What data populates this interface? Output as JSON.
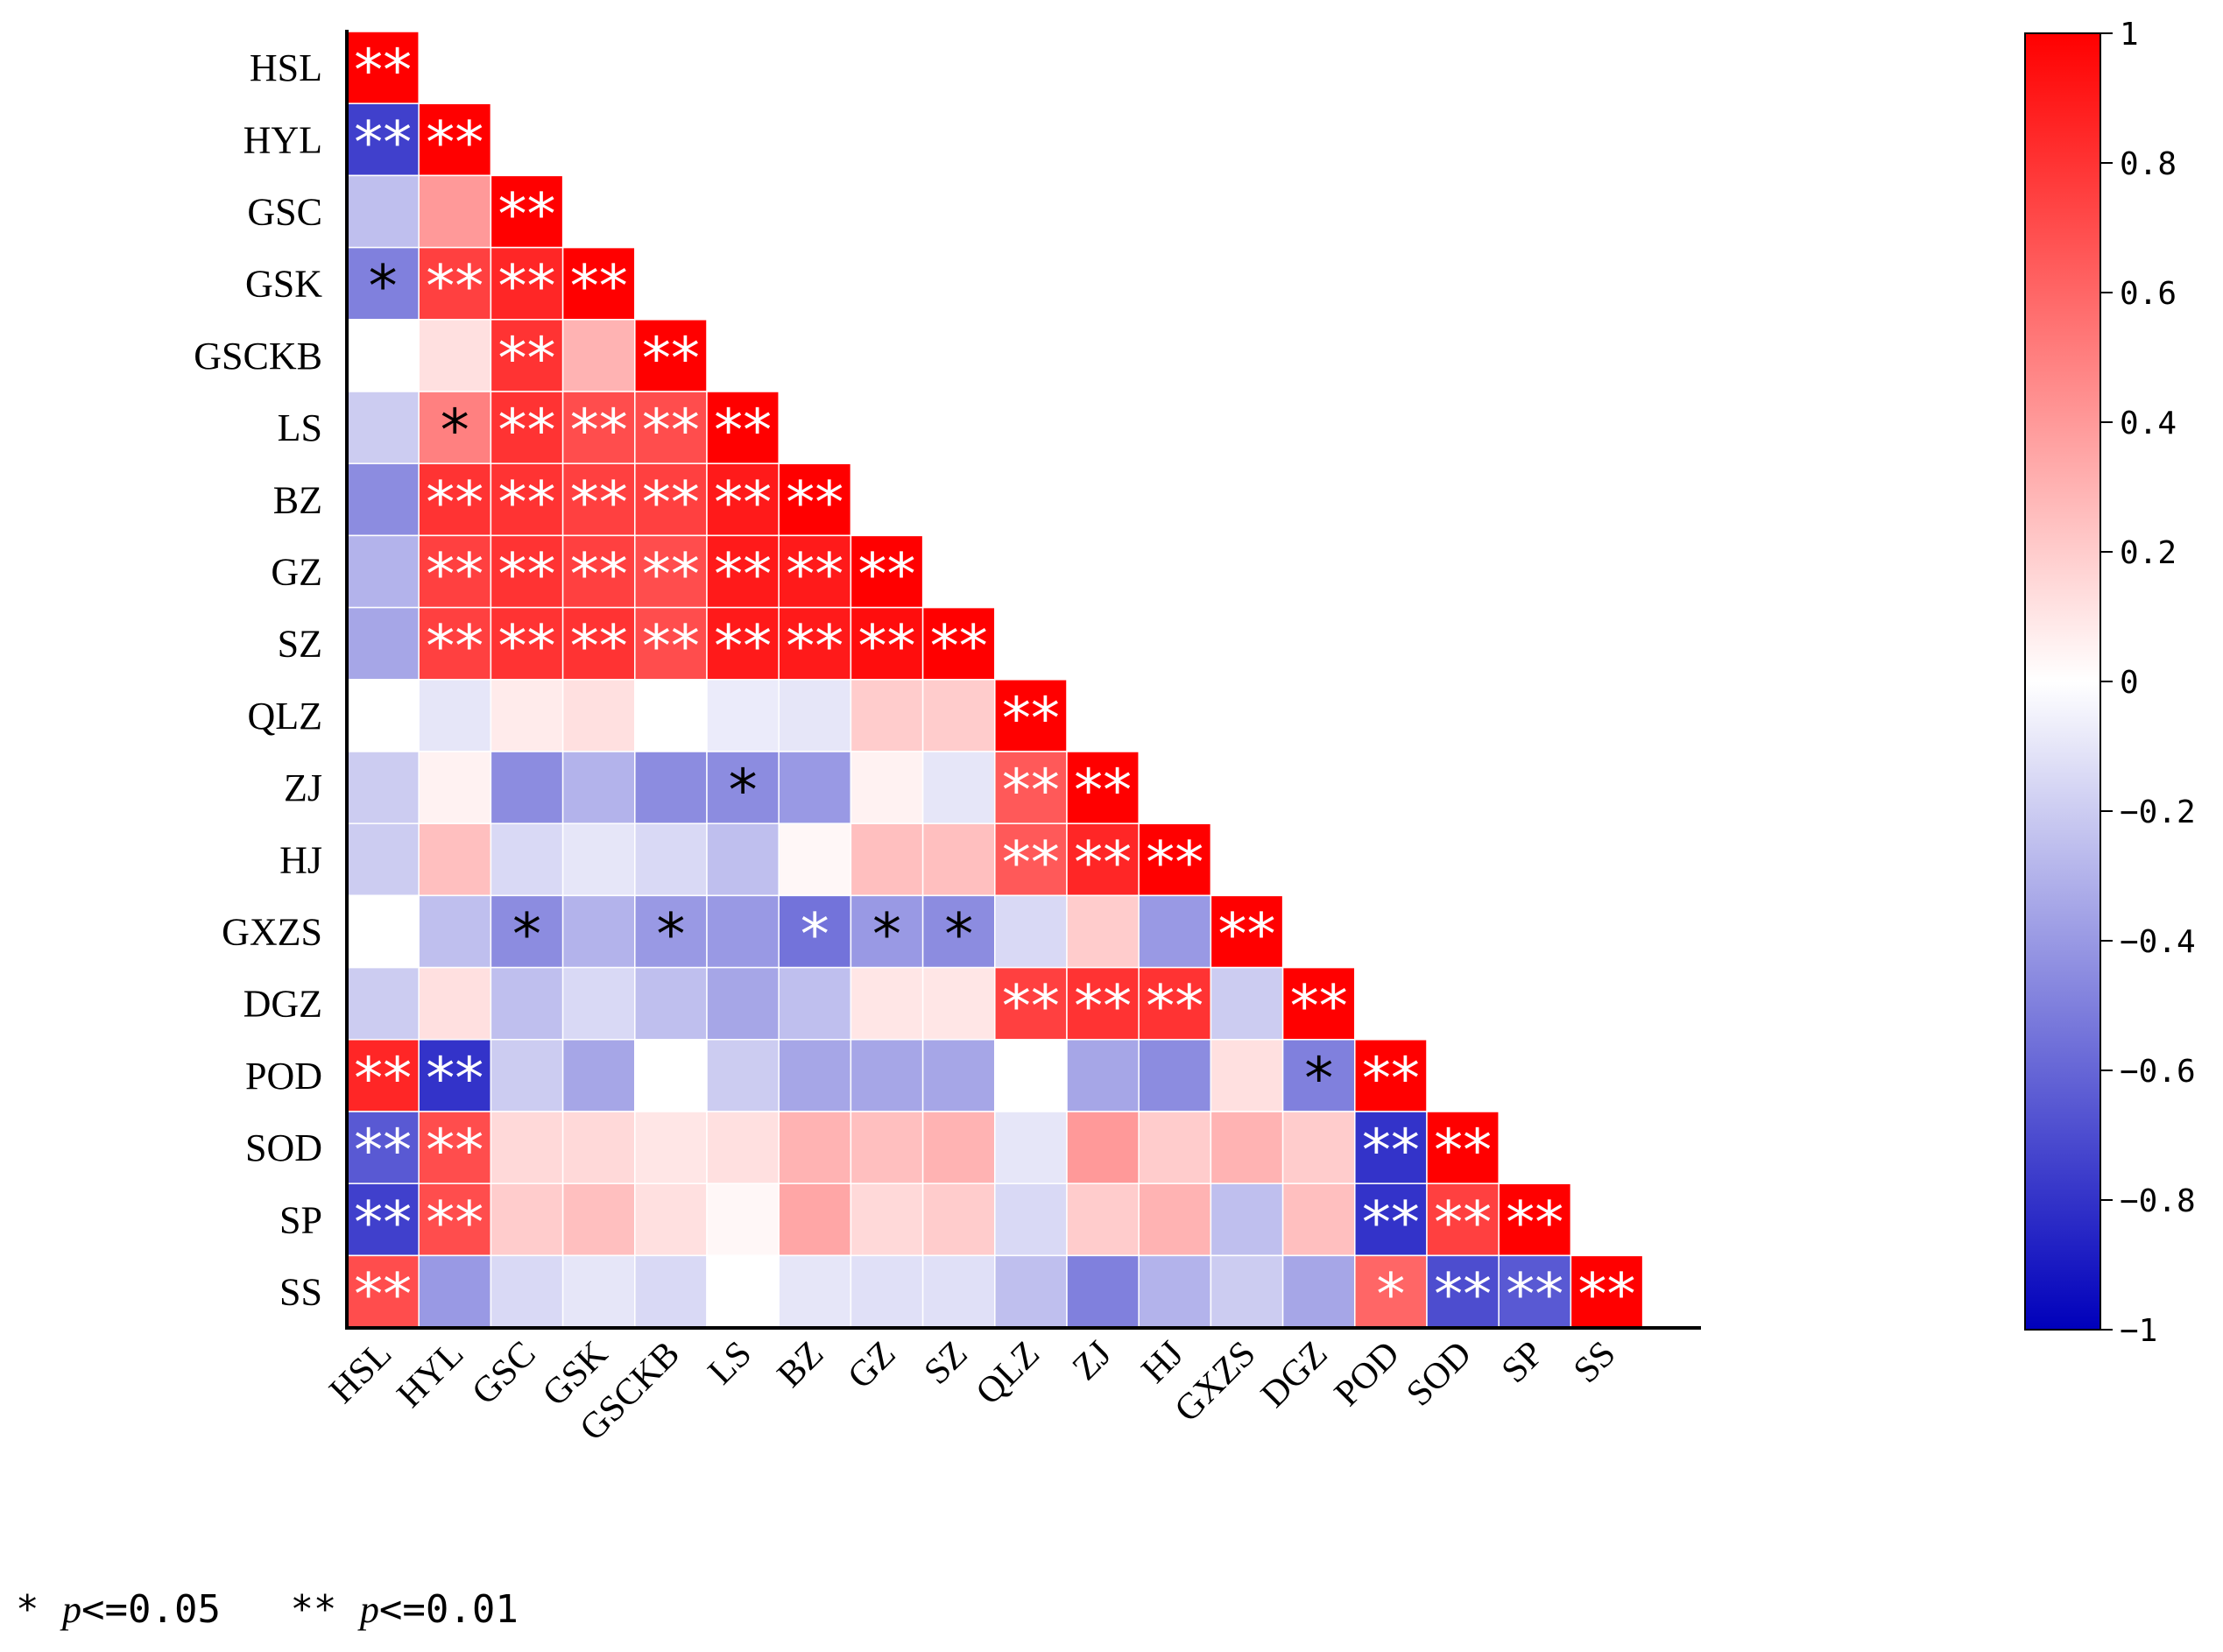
{
  "chart_data": {
    "type": "heatmap",
    "title": "",
    "variables": [
      "HSL",
      "HYL",
      "GSC",
      "GSK",
      "GSCKB",
      "LS",
      "BZ",
      "GZ",
      "SZ",
      "QLZ",
      "ZJ",
      "HJ",
      "GXZS",
      "DGZ",
      "POD",
      "SOD",
      "SP",
      "SS"
    ],
    "matrix": [
      [
        1.0
      ],
      [
        -0.75,
        1.0
      ],
      [
        -0.25,
        0.4,
        1.0
      ],
      [
        -0.5,
        0.75,
        0.85,
        1.0
      ],
      [
        0.0,
        0.12,
        0.8,
        0.3,
        1.0
      ],
      [
        -0.2,
        0.5,
        0.8,
        0.7,
        0.7,
        1.0
      ],
      [
        -0.45,
        0.8,
        0.8,
        0.75,
        0.75,
        0.9,
        1.0
      ],
      [
        -0.3,
        0.75,
        0.8,
        0.75,
        0.7,
        0.9,
        0.9,
        1.0
      ],
      [
        -0.35,
        0.75,
        0.8,
        0.8,
        0.7,
        0.9,
        0.9,
        0.95,
        1.0
      ],
      [
        0.0,
        -0.1,
        0.08,
        0.12,
        0.0,
        -0.08,
        -0.1,
        0.2,
        0.2,
        1.0
      ],
      [
        -0.2,
        0.05,
        -0.45,
        -0.3,
        -0.45,
        -0.45,
        -0.4,
        0.05,
        -0.1,
        0.65,
        1.0
      ],
      [
        -0.2,
        0.25,
        -0.15,
        -0.1,
        -0.15,
        -0.25,
        0.03,
        0.25,
        0.25,
        0.65,
        0.85,
        1.0
      ],
      [
        0.0,
        -0.25,
        -0.45,
        -0.3,
        -0.4,
        -0.4,
        -0.55,
        -0.4,
        -0.45,
        -0.15,
        0.2,
        -0.4,
        1.0
      ],
      [
        -0.2,
        0.12,
        -0.25,
        -0.15,
        -0.25,
        -0.35,
        -0.25,
        0.1,
        0.1,
        0.75,
        0.8,
        0.8,
        -0.2,
        1.0
      ],
      [
        0.85,
        -0.8,
        -0.2,
        -0.35,
        0.0,
        -0.2,
        -0.35,
        -0.35,
        -0.35,
        0.0,
        -0.35,
        -0.45,
        0.12,
        -0.5,
        1.0
      ],
      [
        -0.65,
        0.7,
        0.15,
        0.15,
        0.1,
        0.12,
        0.3,
        0.25,
        0.3,
        -0.1,
        0.4,
        0.2,
        0.3,
        0.2,
        -0.8,
        1.0
      ],
      [
        -0.75,
        0.7,
        0.2,
        0.25,
        0.12,
        0.03,
        0.35,
        0.15,
        0.2,
        -0.15,
        0.2,
        0.3,
        -0.25,
        0.25,
        -0.8,
        0.75,
        1.0
      ],
      [
        0.7,
        -0.4,
        -0.15,
        -0.1,
        -0.15,
        0.0,
        -0.1,
        -0.12,
        -0.12,
        -0.25,
        -0.5,
        -0.3,
        -0.2,
        -0.35,
        0.6,
        -0.7,
        -0.65,
        1.0
      ]
    ],
    "significance": [
      [
        "**"
      ],
      [
        "**",
        "**"
      ],
      [
        "",
        "",
        "**"
      ],
      [
        "*",
        "**",
        "**",
        "**"
      ],
      [
        "",
        "",
        "**",
        "",
        "**"
      ],
      [
        "",
        "*",
        "**",
        "**",
        "**",
        "**"
      ],
      [
        "",
        "**",
        "**",
        "**",
        "**",
        "**",
        "**"
      ],
      [
        "",
        "**",
        "**",
        "**",
        "**",
        "**",
        "**",
        "**"
      ],
      [
        "",
        "**",
        "**",
        "**",
        "**",
        "**",
        "**",
        "**",
        "**"
      ],
      [
        "",
        "",
        "",
        "",
        "",
        "",
        "",
        "",
        "",
        "**"
      ],
      [
        "",
        "",
        "",
        "",
        "",
        "*",
        "",
        "",
        "",
        "**",
        "**"
      ],
      [
        "",
        "",
        "",
        "",
        "",
        "",
        "",
        "",
        "",
        "**",
        "**",
        "**"
      ],
      [
        "",
        "",
        "*",
        "",
        "*",
        "",
        "*",
        "*",
        "*",
        "",
        "",
        "",
        "**"
      ],
      [
        "",
        "",
        "",
        "",
        "",
        "",
        "",
        "",
        "",
        "**",
        "**",
        "**",
        "",
        "**"
      ],
      [
        "**",
        "**",
        "",
        "",
        "",
        "",
        "",
        "",
        "",
        "",
        "",
        "",
        "",
        "*",
        "**"
      ],
      [
        "**",
        "**",
        "",
        "",
        "",
        "",
        "",
        "",
        "",
        "",
        "",
        "",
        "",
        "",
        "**",
        "**"
      ],
      [
        "**",
        "**",
        "",
        "",
        "",
        "",
        "",
        "",
        "",
        "",
        "",
        "",
        "",
        "",
        "**",
        "**",
        "**"
      ],
      [
        "**",
        "",
        "",
        "",
        "",
        "",
        "",
        "",
        "",
        "",
        "",
        "",
        "",
        "",
        "*",
        "**",
        "**",
        "**"
      ]
    ],
    "colorbar": {
      "range": [
        -1,
        1
      ],
      "ticks": [
        "1",
        "0.8",
        "0.6",
        "0.4",
        "0.2",
        "0",
        "−0.2",
        "−0.4",
        "−0.6",
        "−0.8",
        "−1"
      ],
      "colors": {
        "negative": "#0000bb",
        "zero": "#ffffff",
        "positive": "#ff0000"
      }
    },
    "legend_position": "right"
  },
  "footnote": {
    "single_star": "*",
    "p_symbol": "p",
    "single_rest": "<=0.05",
    "double_star": "**",
    "double_rest": "<=0.01"
  }
}
